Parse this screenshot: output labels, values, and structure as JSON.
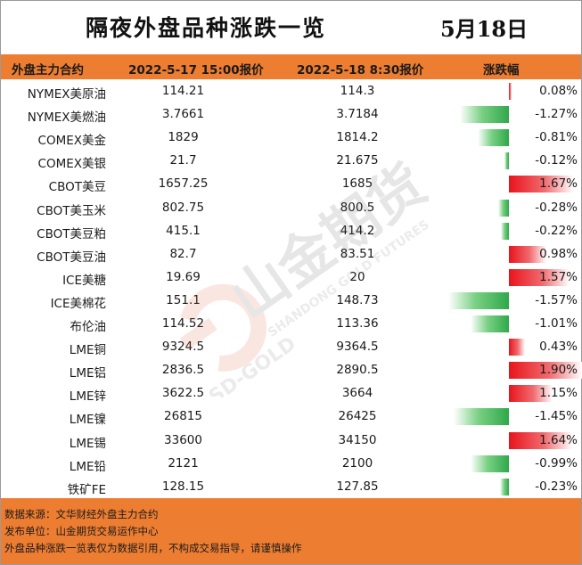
{
  "title": "隔夜外盘品种涨跌一览",
  "date": "5月18日",
  "headers": {
    "name": "外盘主力合约",
    "price1": "2022-5-17 15:00报价",
    "price2": "2022-5-18 8:30报价",
    "change": "涨跌幅"
  },
  "rows": [
    {
      "name": "NYMEX美原油",
      "p1": "114.21",
      "p2": "114.3",
      "change": "0.08%",
      "value": 0.08
    },
    {
      "name": "NYMEX美燃油",
      "p1": "3.7661",
      "p2": "3.7184",
      "change": "-1.27%",
      "value": -1.27
    },
    {
      "name": "COMEX美金",
      "p1": "1829",
      "p2": "1814.2",
      "change": "-0.81%",
      "value": -0.81
    },
    {
      "name": "COMEX美银",
      "p1": "21.7",
      "p2": "21.675",
      "change": "-0.12%",
      "value": -0.12
    },
    {
      "name": "CBOT美豆",
      "p1": "1657.25",
      "p2": "1685",
      "change": "1.67%",
      "value": 1.67
    },
    {
      "name": "CBOT美玉米",
      "p1": "802.75",
      "p2": "800.5",
      "change": "-0.28%",
      "value": -0.28
    },
    {
      "name": "CBOT美豆粕",
      "p1": "415.1",
      "p2": "414.2",
      "change": "-0.22%",
      "value": -0.22
    },
    {
      "name": "CBOT美豆油",
      "p1": "82.7",
      "p2": "83.51",
      "change": "0.98%",
      "value": 0.98
    },
    {
      "name": "ICE美糖",
      "p1": "19.69",
      "p2": "20",
      "change": "1.57%",
      "value": 1.57
    },
    {
      "name": "ICE美棉花",
      "p1": "151.1",
      "p2": "148.73",
      "change": "-1.57%",
      "value": -1.57
    },
    {
      "name": "布伦油",
      "p1": "114.52",
      "p2": "113.36",
      "change": "-1.01%",
      "value": -1.01
    },
    {
      "name": "LME铜",
      "p1": "9324.5",
      "p2": "9364.5",
      "change": "0.43%",
      "value": 0.43
    },
    {
      "name": "LME铝",
      "p1": "2836.5",
      "p2": "2890.5",
      "change": "1.90%",
      "value": 1.9
    },
    {
      "name": "LME锌",
      "p1": "3622.5",
      "p2": "3664",
      "change": "1.15%",
      "value": 1.15
    },
    {
      "name": "LME镍",
      "p1": "26815",
      "p2": "26425",
      "change": "-1.45%",
      "value": -1.45
    },
    {
      "name": "LME锡",
      "p1": "33600",
      "p2": "34150",
      "change": "1.64%",
      "value": 1.64
    },
    {
      "name": "LME铅",
      "p1": "2121",
      "p2": "2100",
      "change": "-0.99%",
      "value": -0.99
    },
    {
      "name": "铁矿FE",
      "p1": "128.15",
      "p2": "127.85",
      "change": "-0.23%",
      "value": -0.23
    }
  ],
  "footer": {
    "line1": "数据来源：文华财经外盘主力合约",
    "line2": "发布单位：山金期货交易运作中心",
    "line3": "外盘品种涨跌一览表仅为数据引用，不构成交易指导，请谨慎操作"
  },
  "watermark": {
    "cn": "山金期货",
    "en1": "SHANDONG GOLD FUTURES",
    "en2": "SD-GOLD"
  },
  "colors": {
    "accent": "#ed7d31",
    "positive": "#e8141c",
    "negative": "#2fa84a"
  }
}
